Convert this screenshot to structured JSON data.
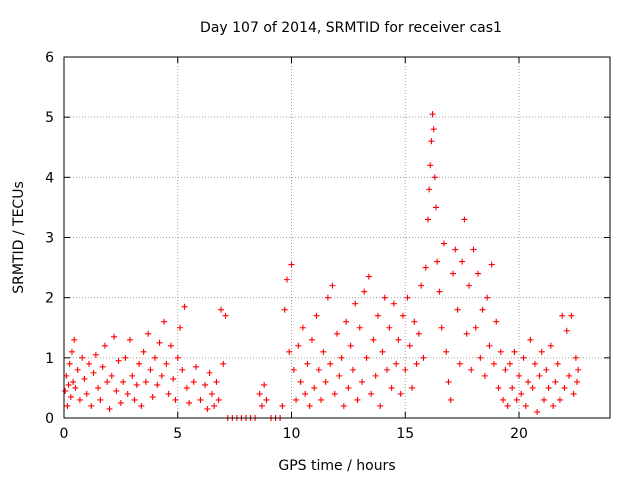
{
  "chart_data": {
    "type": "scatter",
    "title": "Day 107 of 2014, SRMTID for receiver cas1",
    "xlabel": "GPS time / hours",
    "ylabel": "SRMTID / TECUs",
    "xlim": [
      0,
      24
    ],
    "ylim": [
      0,
      6
    ],
    "xticks": [
      0,
      5,
      10,
      15,
      20
    ],
    "yticks": [
      0,
      1,
      2,
      3,
      4,
      5,
      6
    ],
    "grid": true,
    "marker": "+",
    "color": "#ff0000",
    "series": [
      {
        "name": "cas1",
        "points": [
          [
            0.05,
            0.45
          ],
          [
            0.1,
            0.7
          ],
          [
            0.15,
            0.2
          ],
          [
            0.2,
            0.55
          ],
          [
            0.25,
            0.9
          ],
          [
            0.3,
            0.35
          ],
          [
            0.35,
            1.1
          ],
          [
            0.4,
            0.6
          ],
          [
            0.45,
            1.3
          ],
          [
            0.5,
            0.5
          ],
          [
            0.6,
            0.8
          ],
          [
            0.7,
            0.3
          ],
          [
            0.8,
            1.0
          ],
          [
            0.9,
            0.65
          ],
          [
            1.0,
            0.4
          ],
          [
            1.1,
            0.9
          ],
          [
            1.2,
            0.2
          ],
          [
            1.3,
            0.75
          ],
          [
            1.4,
            1.05
          ],
          [
            1.5,
            0.5
          ],
          [
            1.6,
            0.3
          ],
          [
            1.7,
            0.85
          ],
          [
            1.8,
            1.2
          ],
          [
            1.9,
            0.6
          ],
          [
            2.0,
            0.15
          ],
          [
            2.1,
            0.7
          ],
          [
            2.2,
            1.35
          ],
          [
            2.3,
            0.45
          ],
          [
            2.4,
            0.95
          ],
          [
            2.5,
            0.25
          ],
          [
            2.6,
            0.6
          ],
          [
            2.7,
            1.0
          ],
          [
            2.8,
            0.4
          ],
          [
            2.9,
            1.3
          ],
          [
            3.0,
            0.7
          ],
          [
            3.1,
            0.3
          ],
          [
            3.2,
            0.55
          ],
          [
            3.3,
            0.9
          ],
          [
            3.4,
            0.2
          ],
          [
            3.5,
            1.1
          ],
          [
            3.6,
            0.6
          ],
          [
            3.7,
            1.4
          ],
          [
            3.8,
            0.8
          ],
          [
            3.9,
            0.35
          ],
          [
            4.0,
            1.0
          ],
          [
            4.1,
            0.55
          ],
          [
            4.2,
            1.25
          ],
          [
            4.3,
            0.7
          ],
          [
            4.4,
            1.6
          ],
          [
            4.5,
            0.9
          ],
          [
            4.6,
            0.4
          ],
          [
            4.7,
            1.2
          ],
          [
            4.8,
            0.65
          ],
          [
            4.9,
            0.3
          ],
          [
            5.0,
            1.0
          ],
          [
            5.1,
            1.5
          ],
          [
            5.2,
            0.8
          ],
          [
            5.3,
            1.85
          ],
          [
            5.4,
            0.5
          ],
          [
            5.5,
            0.25
          ],
          [
            5.7,
            0.6
          ],
          [
            5.8,
            0.85
          ],
          [
            6.0,
            0.3
          ],
          [
            6.2,
            0.55
          ],
          [
            6.3,
            0.15
          ],
          [
            6.4,
            0.75
          ],
          [
            6.5,
            0.4
          ],
          [
            6.6,
            0.2
          ],
          [
            6.7,
            0.6
          ],
          [
            6.8,
            0.3
          ],
          [
            6.9,
            1.8
          ],
          [
            7.0,
            0.9
          ],
          [
            7.1,
            1.7
          ],
          [
            7.2,
            0.0
          ],
          [
            7.4,
            0.0
          ],
          [
            7.6,
            0.0
          ],
          [
            7.8,
            0.0
          ],
          [
            8.0,
            0.0
          ],
          [
            8.2,
            0.0
          ],
          [
            8.4,
            0.0
          ],
          [
            8.6,
            0.4
          ],
          [
            8.7,
            0.2
          ],
          [
            8.8,
            0.55
          ],
          [
            8.9,
            0.3
          ],
          [
            9.1,
            0.0
          ],
          [
            9.3,
            0.0
          ],
          [
            9.5,
            0.0
          ],
          [
            9.6,
            0.2
          ],
          [
            9.7,
            1.8
          ],
          [
            9.8,
            2.3
          ],
          [
            9.9,
            1.1
          ],
          [
            10.0,
            2.55
          ],
          [
            10.1,
            0.8
          ],
          [
            10.2,
            0.3
          ],
          [
            10.3,
            1.2
          ],
          [
            10.4,
            0.6
          ],
          [
            10.5,
            1.5
          ],
          [
            10.6,
            0.4
          ],
          [
            10.7,
            0.9
          ],
          [
            10.8,
            0.2
          ],
          [
            10.9,
            1.3
          ],
          [
            11.0,
            0.5
          ],
          [
            11.1,
            1.7
          ],
          [
            11.2,
            0.8
          ],
          [
            11.3,
            0.3
          ],
          [
            11.4,
            1.1
          ],
          [
            11.5,
            0.6
          ],
          [
            11.6,
            2.0
          ],
          [
            11.7,
            0.9
          ],
          [
            11.8,
            2.2
          ],
          [
            11.9,
            0.4
          ],
          [
            12.0,
            1.4
          ],
          [
            12.1,
            0.7
          ],
          [
            12.2,
            1.0
          ],
          [
            12.3,
            0.2
          ],
          [
            12.4,
            1.6
          ],
          [
            12.5,
            0.5
          ],
          [
            12.6,
            1.2
          ],
          [
            12.7,
            0.8
          ],
          [
            12.8,
            1.9
          ],
          [
            12.9,
            0.3
          ],
          [
            13.0,
            1.5
          ],
          [
            13.1,
            0.6
          ],
          [
            13.2,
            2.1
          ],
          [
            13.3,
            1.0
          ],
          [
            13.4,
            2.35
          ],
          [
            13.5,
            0.4
          ],
          [
            13.6,
            1.3
          ],
          [
            13.7,
            0.7
          ],
          [
            13.8,
            1.7
          ],
          [
            13.9,
            0.2
          ],
          [
            14.0,
            1.1
          ],
          [
            14.1,
            2.0
          ],
          [
            14.2,
            0.8
          ],
          [
            14.3,
            1.5
          ],
          [
            14.4,
            0.5
          ],
          [
            14.5,
            1.9
          ],
          [
            14.6,
            0.9
          ],
          [
            14.7,
            1.3
          ],
          [
            14.8,
            0.4
          ],
          [
            14.9,
            1.7
          ],
          [
            15.0,
            0.8
          ],
          [
            15.1,
            2.0
          ],
          [
            15.2,
            1.2
          ],
          [
            15.3,
            0.5
          ],
          [
            15.4,
            1.6
          ],
          [
            15.5,
            0.9
          ],
          [
            15.6,
            1.4
          ],
          [
            15.7,
            2.2
          ],
          [
            15.8,
            1.0
          ],
          [
            15.9,
            2.5
          ],
          [
            16.0,
            3.3
          ],
          [
            16.05,
            3.8
          ],
          [
            16.1,
            4.2
          ],
          [
            16.15,
            4.6
          ],
          [
            16.2,
            5.05
          ],
          [
            16.25,
            4.8
          ],
          [
            16.3,
            4.0
          ],
          [
            16.35,
            3.5
          ],
          [
            16.4,
            2.6
          ],
          [
            16.5,
            2.1
          ],
          [
            16.6,
            1.5
          ],
          [
            16.7,
            2.9
          ],
          [
            16.8,
            1.1
          ],
          [
            16.9,
            0.6
          ],
          [
            17.0,
            0.3
          ],
          [
            17.1,
            2.4
          ],
          [
            17.2,
            2.8
          ],
          [
            17.3,
            1.8
          ],
          [
            17.4,
            0.9
          ],
          [
            17.5,
            2.6
          ],
          [
            17.6,
            3.3
          ],
          [
            17.7,
            1.4
          ],
          [
            17.8,
            2.2
          ],
          [
            17.9,
            0.8
          ],
          [
            18.0,
            2.8
          ],
          [
            18.1,
            1.5
          ],
          [
            18.2,
            2.4
          ],
          [
            18.3,
            1.0
          ],
          [
            18.4,
            1.8
          ],
          [
            18.5,
            0.7
          ],
          [
            18.6,
            2.0
          ],
          [
            18.7,
            1.2
          ],
          [
            18.8,
            2.55
          ],
          [
            18.9,
            0.9
          ],
          [
            19.0,
            1.6
          ],
          [
            19.1,
            0.5
          ],
          [
            19.2,
            1.1
          ],
          [
            19.3,
            0.3
          ],
          [
            19.4,
            0.8
          ],
          [
            19.5,
            0.2
          ],
          [
            19.6,
            0.9
          ],
          [
            19.7,
            0.5
          ],
          [
            19.8,
            1.1
          ],
          [
            19.9,
            0.3
          ],
          [
            20.0,
            0.7
          ],
          [
            20.1,
            0.4
          ],
          [
            20.2,
            1.0
          ],
          [
            20.3,
            0.2
          ],
          [
            20.4,
            0.6
          ],
          [
            20.5,
            1.3
          ],
          [
            20.6,
            0.5
          ],
          [
            20.7,
            0.9
          ],
          [
            20.8,
            0.1
          ],
          [
            20.9,
            0.7
          ],
          [
            21.0,
            1.1
          ],
          [
            21.1,
            0.3
          ],
          [
            21.2,
            0.8
          ],
          [
            21.3,
            0.5
          ],
          [
            21.4,
            1.2
          ],
          [
            21.5,
            0.2
          ],
          [
            21.6,
            0.6
          ],
          [
            21.7,
            0.9
          ],
          [
            21.8,
            0.3
          ],
          [
            21.9,
            1.7
          ],
          [
            22.0,
            0.5
          ],
          [
            22.1,
            1.45
          ],
          [
            22.2,
            0.7
          ],
          [
            22.3,
            1.7
          ],
          [
            22.4,
            0.4
          ],
          [
            22.5,
            1.0
          ],
          [
            22.55,
            0.6
          ],
          [
            22.6,
            0.8
          ]
        ]
      }
    ]
  }
}
